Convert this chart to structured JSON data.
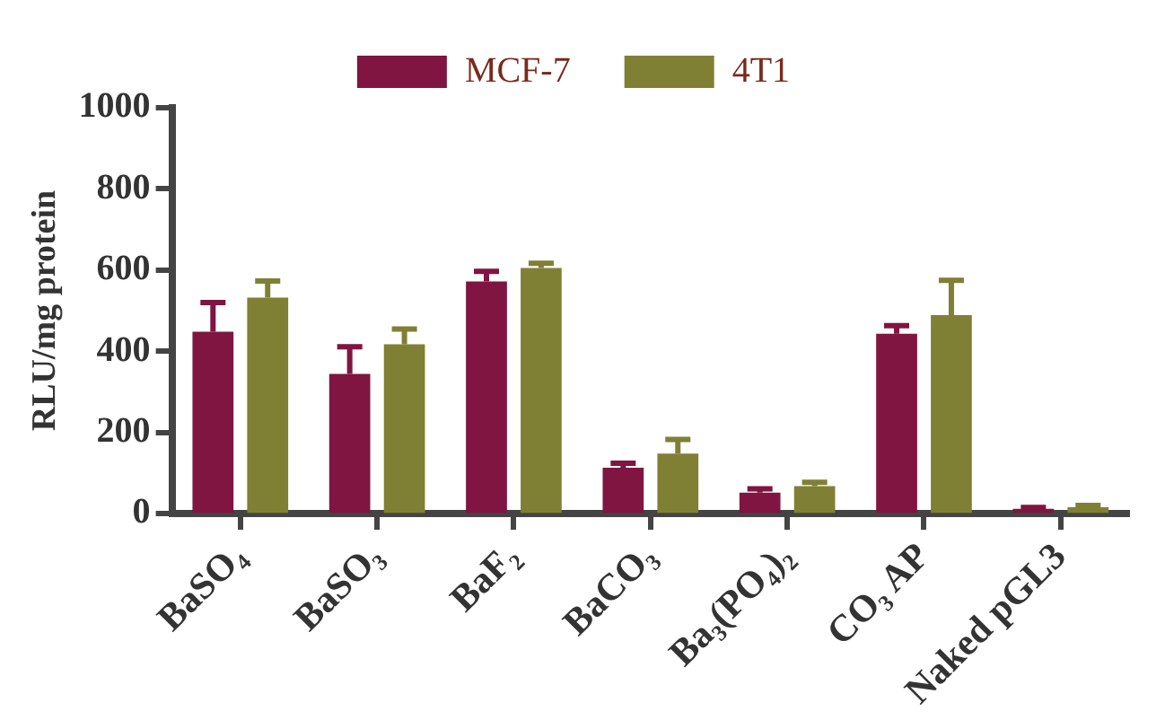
{
  "chart_data": {
    "type": "bar",
    "ylabel": "RLU/mg protein",
    "categories": [
      "BaSO₄",
      "BaSO₃",
      "BaF₂",
      "BaCO₃",
      "Ba₃(PO₄)₂",
      "CO₃ AP",
      "Naked pGL3"
    ],
    "series": [
      {
        "name": "MCF-7",
        "color": "#7f1540",
        "values": [
          448,
          344,
          572,
          113,
          52,
          443,
          12
        ],
        "errors": [
          [
            448,
            520
          ],
          [
            344,
            411
          ],
          [
            572,
            597
          ],
          [
            113,
            124
          ],
          [
            52,
            61
          ],
          [
            443,
            463
          ],
          [
            12,
            15
          ]
        ]
      },
      {
        "name": "4T1",
        "color": "#7f8034",
        "values": [
          532,
          417,
          605,
          148,
          68,
          489,
          16
        ],
        "errors": [
          [
            532,
            573
          ],
          [
            417,
            455
          ],
          [
            605,
            617
          ],
          [
            148,
            183
          ],
          [
            68,
            77
          ],
          [
            489,
            575
          ],
          [
            16,
            20
          ]
        ]
      }
    ],
    "ylim": [
      0,
      1000
    ],
    "yticks": [
      0,
      200,
      400,
      600,
      800,
      1000
    ],
    "grid": false,
    "legend": "top"
  }
}
